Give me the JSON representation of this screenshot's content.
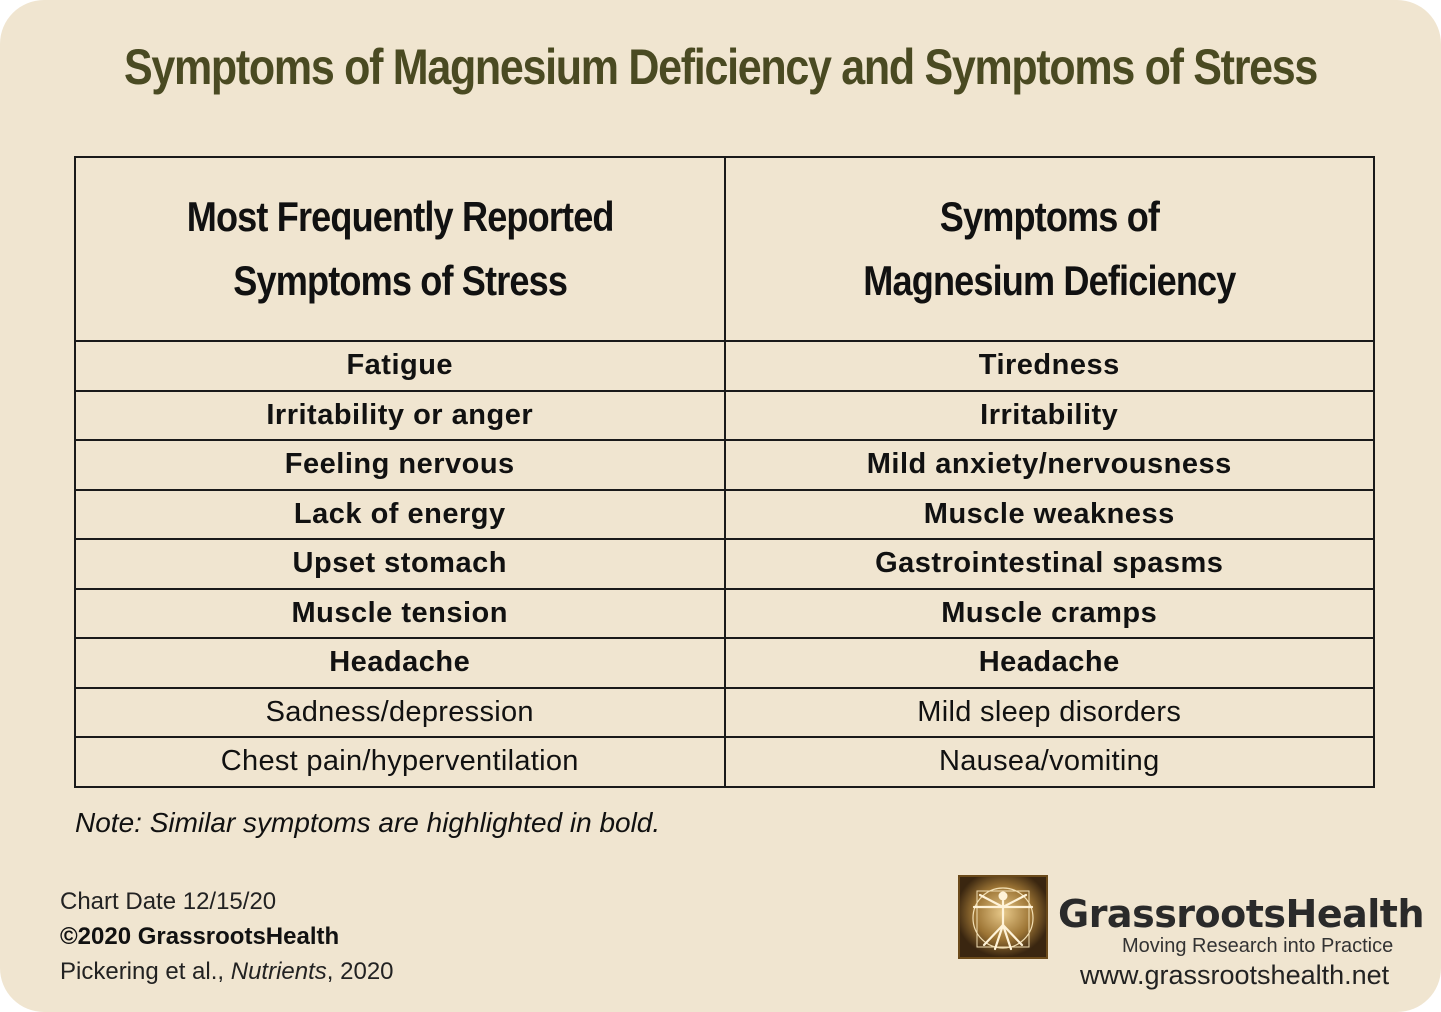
{
  "title": "Symptoms of Magnesium Deficiency and Symptoms of Stress",
  "table": {
    "headers": [
      [
        "Most Frequently Reported",
        "Symptoms of Stress"
      ],
      [
        "Symptoms of",
        "Magnesium Deficiency"
      ]
    ],
    "rows": [
      {
        "stress": "Fatigue",
        "magnesium": "Tiredness",
        "bold": true
      },
      {
        "stress": "Irritability or anger",
        "magnesium": "Irritability",
        "bold": true
      },
      {
        "stress": "Feeling nervous",
        "magnesium": "Mild anxiety/nervousness",
        "bold": true
      },
      {
        "stress": "Lack of energy",
        "magnesium": "Muscle weakness",
        "bold": true
      },
      {
        "stress": "Upset stomach",
        "magnesium": "Gastrointestinal spasms",
        "bold": true
      },
      {
        "stress": "Muscle tension",
        "magnesium": "Muscle cramps",
        "bold": true
      },
      {
        "stress": "Headache",
        "magnesium": "Headache",
        "bold": true
      },
      {
        "stress": "Sadness/depression",
        "magnesium": "Mild sleep disorders",
        "bold": false
      },
      {
        "stress": "Chest pain/hyperventilation",
        "magnesium": "Nausea/vomiting",
        "bold": false
      }
    ]
  },
  "note": "Note: Similar symptoms are highlighted in bold.",
  "footer": {
    "chart_date": "Chart Date 12/15/20",
    "copyright": "©2020 GrassrootsHealth",
    "citation_authors": "Pickering et al., ",
    "citation_journal": "Nutrients",
    "citation_year": ", 2020"
  },
  "brand": {
    "name": "GrassrootsHealth",
    "tagline": "Moving Research into Practice",
    "url": "www.grassrootshealth.net",
    "logo_icon": "vitruvian-man-icon"
  },
  "colors": {
    "background": "#f0e5d0",
    "title": "#4a4a22",
    "text": "#111111",
    "border": "#1a1a1a"
  }
}
